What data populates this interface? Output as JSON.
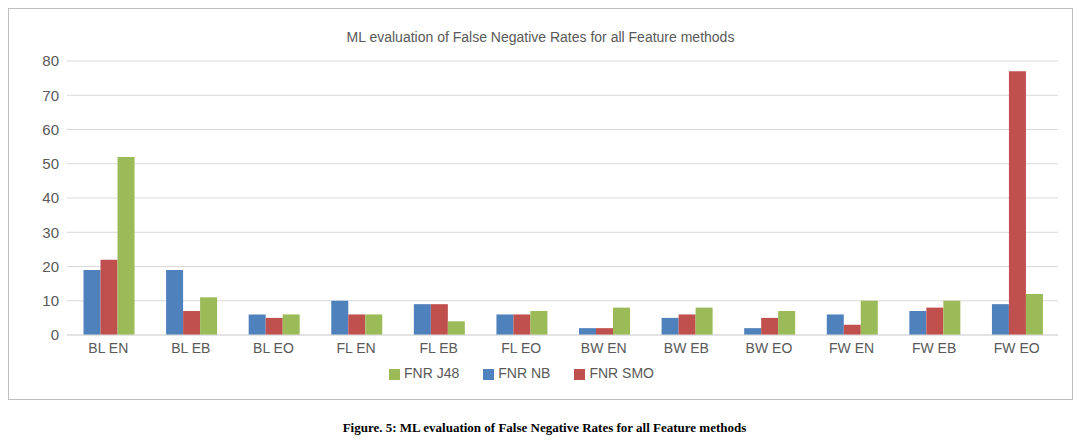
{
  "chart_data": {
    "type": "bar",
    "title": "ML evaluation of False Negative Rates for all Feature methods",
    "caption": "Figure. 5: ML evaluation of False Negative Rates for all Feature methods",
    "categories": [
      "BL EN",
      "BL EB",
      "BL EO",
      "FL EN",
      "FL EB",
      "FL EO",
      "BW EN",
      "BW EB",
      "BW EO",
      "FW EN",
      "FW EB",
      "FW EO"
    ],
    "series": [
      {
        "name": "FNR NB",
        "color": "#4f81bd",
        "values": [
          19,
          19,
          6,
          10,
          9,
          6,
          2,
          5,
          2,
          6,
          7,
          9
        ]
      },
      {
        "name": "FNR SMO",
        "color": "#c0504d",
        "values": [
          22,
          7,
          5,
          6,
          9,
          6,
          2,
          6,
          5,
          3,
          8,
          77
        ]
      },
      {
        "name": "FNR J48",
        "color": "#9bbb59",
        "values": [
          52,
          11,
          6,
          6,
          4,
          7,
          8,
          8,
          7,
          10,
          10,
          12
        ]
      }
    ],
    "ylim": [
      0,
      80
    ],
    "yticks": [
      0,
      10,
      20,
      30,
      40,
      50,
      60,
      70,
      80
    ],
    "grid": true,
    "legend": "bottom"
  }
}
